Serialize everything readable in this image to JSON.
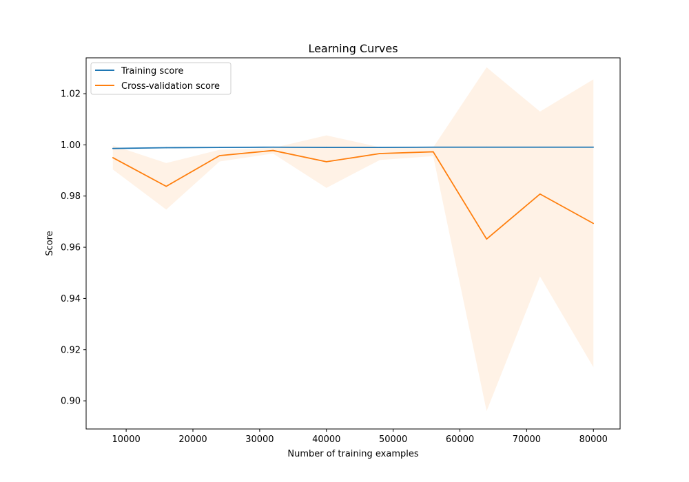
{
  "chart_data": {
    "type": "line",
    "title": "Learning Curves",
    "xlabel": "Number of training examples",
    "ylabel": "Score",
    "xlim": [
      4000,
      84000
    ],
    "ylim": [
      0.889,
      1.034
    ],
    "xticks": [
      10000,
      20000,
      30000,
      40000,
      50000,
      60000,
      70000,
      80000
    ],
    "xtick_labels": [
      "10000",
      "20000",
      "30000",
      "40000",
      "50000",
      "60000",
      "70000",
      "80000"
    ],
    "yticks": [
      0.9,
      0.92,
      0.94,
      0.96,
      0.98,
      1.0,
      1.02
    ],
    "ytick_labels": [
      "0.90",
      "0.92",
      "0.94",
      "0.96",
      "0.98",
      "1.00",
      "1.02"
    ],
    "grid": false,
    "legend_position": "top-left",
    "x": [
      8000,
      16000,
      24000,
      32000,
      40000,
      48000,
      56000,
      64000,
      72000,
      80000
    ],
    "series": [
      {
        "name": "Training score",
        "color": "#1f77b4",
        "values": [
          0.9986,
          0.9989,
          0.999,
          0.9991,
          0.999,
          0.999,
          0.9991,
          0.9991,
          0.9991,
          0.9991
        ],
        "band_lower": [
          0.9983,
          0.9986,
          0.9988,
          0.9989,
          0.9988,
          0.9988,
          0.9989,
          0.9989,
          0.999,
          0.999
        ],
        "band_upper": [
          0.9989,
          0.9992,
          0.9992,
          0.9993,
          0.9992,
          0.9992,
          0.9993,
          0.9993,
          0.9992,
          0.9992
        ]
      },
      {
        "name": "Cross-validation score",
        "color": "#ff7f0e",
        "band_color": "#ff7f0e",
        "values": [
          0.995,
          0.9838,
          0.9958,
          0.9978,
          0.9934,
          0.9966,
          0.9973,
          0.9632,
          0.9808,
          0.9693
        ],
        "band_lower": [
          0.9904,
          0.9747,
          0.9935,
          0.9966,
          0.9832,
          0.9941,
          0.9956,
          0.896,
          0.9486,
          0.9131
        ],
        "band_upper": [
          0.9998,
          0.9929,
          0.9981,
          0.9988,
          1.0037,
          0.9991,
          0.999,
          1.0303,
          1.013,
          1.0256
        ]
      }
    ]
  }
}
